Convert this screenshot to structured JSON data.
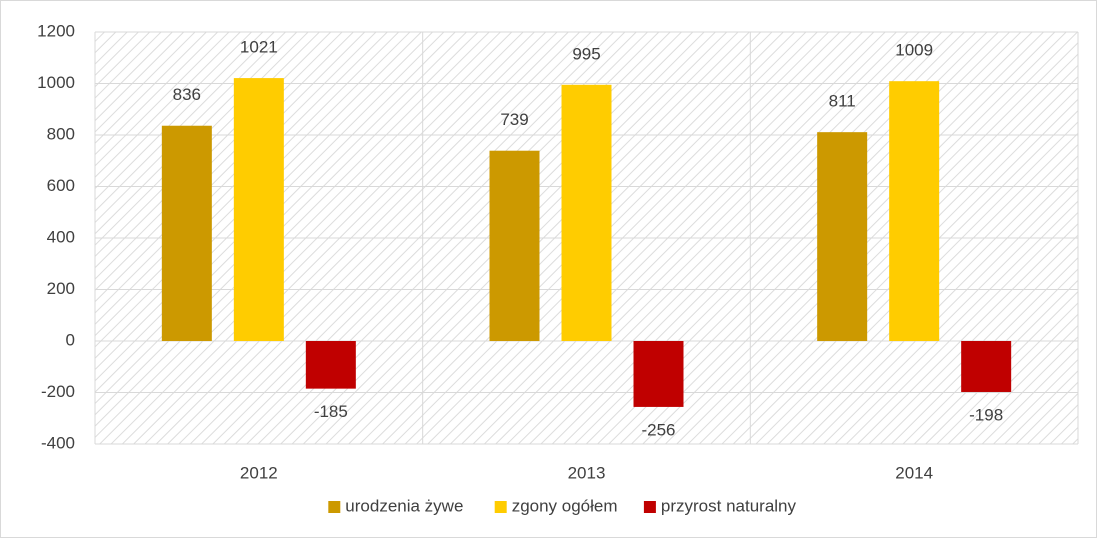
{
  "chart_data": {
    "type": "bar",
    "categories": [
      "2012",
      "2013",
      "2014"
    ],
    "series": [
      {
        "name": "urodzenia żywe",
        "color": "#cc9900",
        "values": [
          836,
          739,
          811
        ]
      },
      {
        "name": "zgony ogółem",
        "color": "#ffcc00",
        "values": [
          1021,
          995,
          1009
        ]
      },
      {
        "name": "przyrost naturalny",
        "color": "#c00000",
        "values": [
          -185,
          -256,
          -198
        ]
      }
    ],
    "ylim": [
      -400,
      1200
    ],
    "yticks": [
      -400,
      -200,
      0,
      200,
      400,
      600,
      800,
      1000,
      1200
    ],
    "grid": true,
    "legend": "bottom"
  }
}
